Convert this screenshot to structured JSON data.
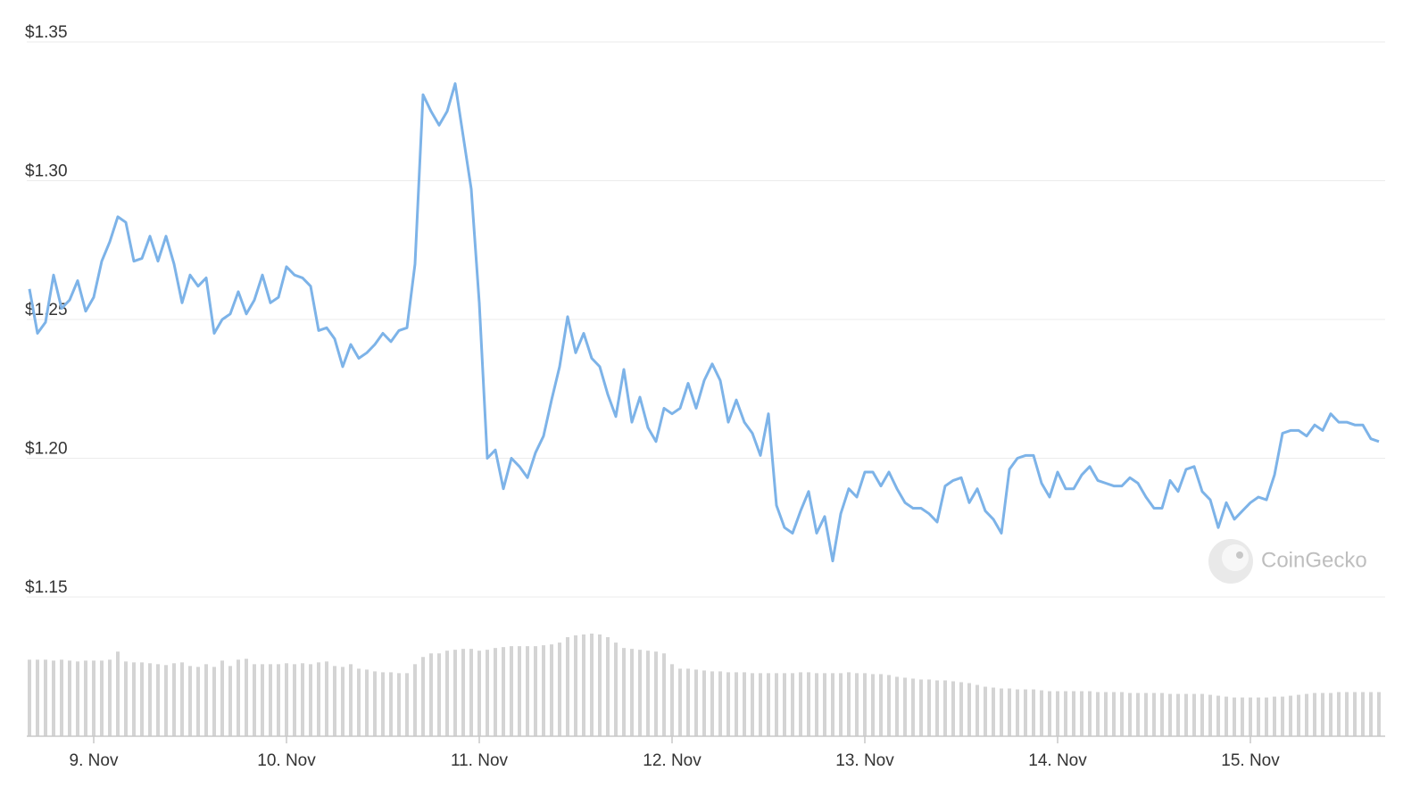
{
  "chart_data": {
    "type": "line",
    "categories": [
      null,
      null,
      null,
      null,
      null,
      null,
      null,
      null,
      "9. Nov",
      null,
      null,
      null,
      null,
      null,
      null,
      null,
      null,
      null,
      null,
      null,
      null,
      null,
      null,
      null,
      null,
      null,
      null,
      null,
      null,
      null,
      null,
      null,
      "10. Nov",
      null,
      null,
      null,
      null,
      null,
      null,
      null,
      null,
      null,
      null,
      null,
      null,
      null,
      null,
      null,
      null,
      null,
      null,
      null,
      null,
      null,
      null,
      null,
      "11. Nov",
      null,
      null,
      null,
      null,
      null,
      null,
      null,
      null,
      null,
      null,
      null,
      null,
      null,
      null,
      null,
      null,
      null,
      null,
      null,
      null,
      null,
      null,
      null,
      "12. Nov",
      null,
      null,
      null,
      null,
      null,
      null,
      null,
      null,
      null,
      null,
      null,
      null,
      null,
      null,
      null,
      null,
      null,
      null,
      null,
      null,
      null,
      null,
      null,
      "13. Nov",
      null,
      null,
      null,
      null,
      null,
      null,
      null,
      null,
      null,
      null,
      null,
      null,
      null,
      null,
      null,
      null,
      null,
      null,
      null,
      null,
      null,
      null,
      null,
      "14. Nov",
      null,
      null,
      null,
      null,
      null,
      null,
      null,
      null,
      null,
      null,
      null,
      null,
      null,
      null,
      null,
      null,
      null,
      null,
      null,
      null,
      null,
      null,
      null,
      "15. Nov",
      null,
      null,
      null,
      null,
      null,
      null,
      null,
      null,
      null,
      null,
      null,
      null,
      null,
      null,
      null,
      null
    ],
    "values": [
      1.261,
      1.245,
      1.249,
      1.266,
      1.254,
      1.257,
      1.264,
      1.253,
      1.258,
      1.271,
      1.278,
      1.287,
      1.285,
      1.271,
      1.272,
      1.28,
      1.271,
      1.28,
      1.27,
      1.256,
      1.266,
      1.262,
      1.265,
      1.245,
      1.25,
      1.252,
      1.26,
      1.252,
      1.257,
      1.266,
      1.256,
      1.258,
      1.269,
      1.266,
      1.265,
      1.262,
      1.246,
      1.247,
      1.243,
      1.233,
      1.241,
      1.236,
      1.238,
      1.241,
      1.245,
      1.242,
      1.246,
      1.247,
      1.27,
      1.331,
      1.325,
      1.32,
      1.325,
      1.335,
      1.316,
      1.297,
      1.256,
      1.2,
      1.203,
      1.189,
      1.2,
      1.197,
      1.193,
      1.202,
      1.208,
      1.221,
      1.233,
      1.251,
      1.238,
      1.245,
      1.236,
      1.233,
      1.223,
      1.215,
      1.232,
      1.213,
      1.222,
      1.211,
      1.206,
      1.218,
      1.216,
      1.218,
      1.227,
      1.218,
      1.228,
      1.234,
      1.228,
      1.213,
      1.221,
      1.213,
      1.209,
      1.201,
      1.216,
      1.183,
      1.175,
      1.173,
      1.181,
      1.188,
      1.173,
      1.179,
      1.163,
      1.18,
      1.189,
      1.186,
      1.195,
      1.195,
      1.19,
      1.195,
      1.189,
      1.184,
      1.182,
      1.182,
      1.18,
      1.177,
      1.19,
      1.192,
      1.193,
      1.184,
      1.189,
      1.181,
      1.178,
      1.173,
      1.196,
      1.2,
      1.201,
      1.201,
      1.191,
      1.186,
      1.195,
      1.189,
      1.189,
      1.194,
      1.197,
      1.192,
      1.191,
      1.19,
      1.19,
      1.193,
      1.191,
      1.186,
      1.182,
      1.182,
      1.192,
      1.188,
      1.196,
      1.197,
      1.188,
      1.185,
      1.175,
      1.184,
      1.178,
      1.181,
      1.184,
      1.186,
      1.185,
      1.194,
      1.209,
      1.21,
      1.21,
      1.208,
      1.212,
      1.21,
      1.216,
      1.213,
      1.213,
      1.212,
      1.212,
      1.207,
      1.206
    ],
    "color": "#7db3e8",
    "volume": {
      "color": "#d4d4d4",
      "values": [
        85,
        85,
        85,
        84,
        85,
        84,
        83,
        84,
        84,
        84,
        85,
        94,
        83,
        82,
        82,
        81,
        80,
        79,
        81,
        82,
        78,
        77,
        80,
        77,
        84,
        78,
        85,
        86,
        80,
        80,
        80,
        80,
        81,
        80,
        81,
        80,
        82,
        83,
        78,
        77,
        80,
        75,
        74,
        72,
        71,
        71,
        70,
        70,
        80,
        88,
        92,
        92,
        95,
        96,
        97,
        97,
        95,
        96,
        98,
        99,
        100,
        100,
        100,
        100,
        101,
        102,
        104,
        110,
        112,
        113,
        114,
        113,
        110,
        104,
        98,
        97,
        96,
        95,
        94,
        92,
        80,
        75,
        75,
        74,
        73,
        72,
        72,
        71,
        71,
        71,
        70,
        70,
        70,
        70,
        70,
        70,
        71,
        71,
        70,
        70,
        70,
        70,
        71,
        70,
        70,
        69,
        69,
        68,
        66,
        65,
        64,
        63,
        63,
        62,
        62,
        61,
        60,
        59,
        57,
        55,
        54,
        53,
        53,
        52,
        52,
        52,
        51,
        50,
        50,
        50,
        50,
        50,
        50,
        49,
        49,
        49,
        49,
        48,
        48,
        48,
        48,
        48,
        47,
        47,
        47,
        47,
        47,
        46,
        45,
        44,
        43,
        43,
        43,
        43,
        43,
        44,
        44,
        45,
        46,
        47,
        48,
        48,
        48,
        49,
        49,
        49,
        49,
        49,
        49
      ]
    },
    "ylim": [
      1.15,
      1.35
    ],
    "yticks": [
      {
        "value": 1.15,
        "label": "$1.15"
      },
      {
        "value": 1.2,
        "label": "$1.20"
      },
      {
        "value": 1.25,
        "label": "$1.25"
      },
      {
        "value": 1.3,
        "label": "$1.30"
      },
      {
        "value": 1.35,
        "label": "$1.35"
      }
    ],
    "grid": true,
    "watermark": "CoinGecko"
  }
}
